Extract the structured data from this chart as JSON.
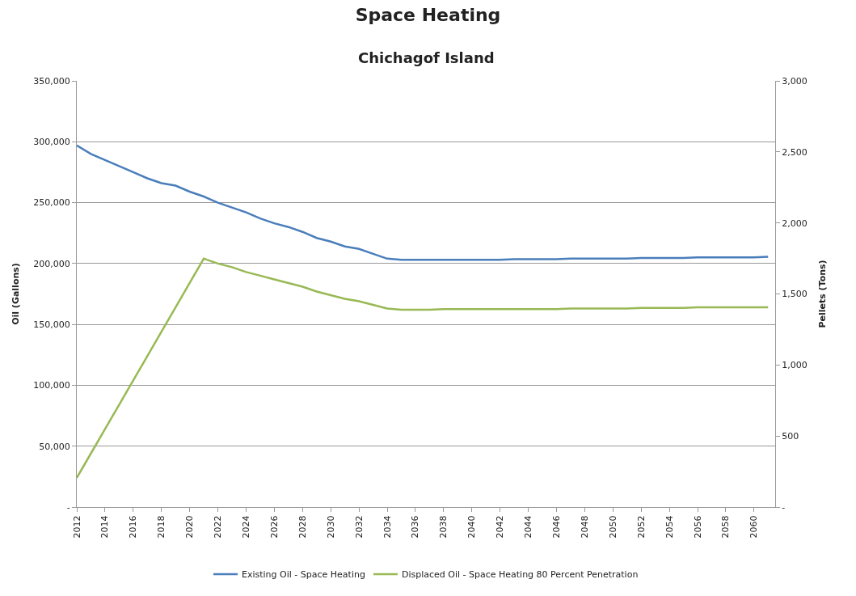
{
  "chart_data": {
    "type": "line",
    "title": "Space Heating",
    "subtitle": "Chichagof Island",
    "ylabel": "Oil (Gallons)",
    "y2label": "Pellets (Tons)",
    "x": [
      2012,
      2013,
      2014,
      2015,
      2016,
      2017,
      2018,
      2019,
      2020,
      2021,
      2022,
      2023,
      2024,
      2025,
      2026,
      2027,
      2028,
      2029,
      2030,
      2031,
      2032,
      2033,
      2034,
      2035,
      2036,
      2037,
      2038,
      2039,
      2040,
      2041,
      2042,
      2043,
      2044,
      2045,
      2046,
      2047,
      2048,
      2049,
      2050,
      2051,
      2052,
      2053,
      2054,
      2055,
      2056,
      2057,
      2058,
      2059,
      2060,
      2061
    ],
    "series": [
      {
        "name": "Existing Oil - Space Heating",
        "color": "#4a7ebb",
        "values": [
          297000,
          290000,
          285000,
          280000,
          275000,
          270000,
          266000,
          264000,
          259000,
          255000,
          250000,
          246000,
          242000,
          237000,
          233000,
          230000,
          226000,
          221000,
          218000,
          214000,
          212000,
          208000,
          204000,
          203000,
          203000,
          203000,
          203000,
          203000,
          203000,
          203000,
          203000,
          203500,
          203500,
          203500,
          203500,
          204000,
          204000,
          204000,
          204000,
          204000,
          204500,
          204500,
          204500,
          204500,
          205000,
          205000,
          205000,
          205000,
          205000,
          205500
        ]
      },
      {
        "name": "Displaced Oil - Space Heating 80 Percent Penetration",
        "color": "#98b954",
        "values": [
          24000,
          44000,
          64000,
          84000,
          104000,
          124000,
          144000,
          164000,
          184000,
          204000,
          200000,
          197000,
          193000,
          190000,
          187000,
          184000,
          181000,
          177000,
          174000,
          171000,
          169000,
          166000,
          163000,
          162000,
          162000,
          162000,
          162500,
          162500,
          162500,
          162500,
          162500,
          162500,
          162500,
          162500,
          162500,
          163000,
          163000,
          163000,
          163000,
          163000,
          163500,
          163500,
          163500,
          163500,
          164000,
          164000,
          164000,
          164000,
          164000,
          164000
        ]
      }
    ],
    "xlim": [
      2012,
      2061.5
    ],
    "xticks": [
      2012,
      2014,
      2016,
      2018,
      2020,
      2022,
      2024,
      2026,
      2028,
      2030,
      2032,
      2034,
      2036,
      2038,
      2040,
      2042,
      2044,
      2046,
      2048,
      2050,
      2052,
      2054,
      2056,
      2058,
      2060
    ],
    "ylim": [
      0,
      350000
    ],
    "yticks": [
      {
        "value": 0,
        "label": "-"
      },
      {
        "value": 50000,
        "label": "50,000"
      },
      {
        "value": 100000,
        "label": "100,000"
      },
      {
        "value": 150000,
        "label": "150,000"
      },
      {
        "value": 200000,
        "label": "200,000"
      },
      {
        "value": 250000,
        "label": "250,000"
      },
      {
        "value": 300000,
        "label": "300,000"
      },
      {
        "value": 350000,
        "label": "350,000"
      }
    ],
    "y2lim": [
      0,
      3000
    ],
    "y2ticks": [
      {
        "value": 0,
        "label": "-"
      },
      {
        "value": 500,
        "label": "500"
      },
      {
        "value": 1000,
        "label": "1,000"
      },
      {
        "value": 1500,
        "label": "1,500"
      },
      {
        "value": 2000,
        "label": "2,000"
      },
      {
        "value": 2500,
        "label": "2,500"
      },
      {
        "value": 3000,
        "label": "3,000"
      }
    ],
    "grid": "y",
    "legend": "bottom",
    "marker": "none",
    "line_style": "solid"
  }
}
